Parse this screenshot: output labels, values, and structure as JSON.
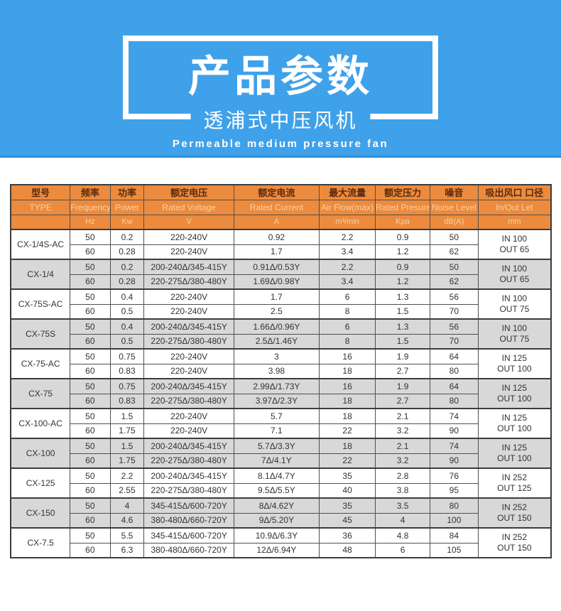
{
  "banner": {
    "title": "产品参数",
    "subtitle": "透浦式中压风机",
    "subtitle_en": "Permeable medium pressure fan",
    "bg_color": "#3fa1e9"
  },
  "table": {
    "colors": {
      "header_bg": "#ec8b3e",
      "header_text_cn": "#5b2a0e",
      "header_text_en": "#f8d2a4",
      "shaded_row": "#d8d8d8",
      "border": "#4f4f4f"
    },
    "header": {
      "cn": [
        "型号",
        "频率",
        "功率",
        "额定电压",
        "额定电流",
        "最大流量",
        "额定压力",
        "噪音",
        "吸出风口 口径"
      ],
      "en": [
        "TYPE",
        "Frequency",
        "Power",
        "Rated Voltage",
        "Rated Current",
        "Air Flow(max)",
        "Rated Presure",
        "Noise Level",
        "In/Out Let"
      ],
      "units": [
        "",
        "Hz",
        "Kw",
        "V",
        "A",
        "m³/min",
        "Kpa",
        "dB(A)",
        "mm"
      ]
    },
    "groups": [
      {
        "type": "CX-1/4S-AC",
        "shaded": false,
        "inout": [
          "IN 100",
          "OUT 65"
        ],
        "rows": [
          {
            "hz": "50",
            "kw": "0.2",
            "voltage": "220-240V",
            "current": "0.92",
            "flow": "2.2",
            "pressure": "0.9",
            "noise": "50"
          },
          {
            "hz": "60",
            "kw": "0.28",
            "voltage": "220-240V",
            "current": "1.7",
            "flow": "3.4",
            "pressure": "1.2",
            "noise": "62"
          }
        ]
      },
      {
        "type": "CX-1/4",
        "shaded": true,
        "inout": [
          "IN 100",
          "OUT 65"
        ],
        "rows": [
          {
            "hz": "50",
            "kw": "0.2",
            "voltage": "200-240Δ/345-415Y",
            "current": "0.91Δ/0.53Y",
            "flow": "2.2",
            "pressure": "0.9",
            "noise": "50"
          },
          {
            "hz": "60",
            "kw": "0.28",
            "voltage": "220-275Δ/380-480Y",
            "current": "1.69Δ/0.98Y",
            "flow": "3.4",
            "pressure": "1.2",
            "noise": "62"
          }
        ]
      },
      {
        "type": "CX-75S-AC",
        "shaded": false,
        "inout": [
          "IN 100",
          "OUT 75"
        ],
        "rows": [
          {
            "hz": "50",
            "kw": "0.4",
            "voltage": "220-240V",
            "current": "1.7",
            "flow": "6",
            "pressure": "1.3",
            "noise": "56"
          },
          {
            "hz": "60",
            "kw": "0.5",
            "voltage": "220-240V",
            "current": "2.5",
            "flow": "8",
            "pressure": "1.5",
            "noise": "70"
          }
        ]
      },
      {
        "type": "CX-75S",
        "shaded": true,
        "inout": [
          "IN 100",
          "OUT 75"
        ],
        "rows": [
          {
            "hz": "50",
            "kw": "0.4",
            "voltage": "200-240Δ/345-415Y",
            "current": "1.66Δ/0.96Y",
            "flow": "6",
            "pressure": "1.3",
            "noise": "56"
          },
          {
            "hz": "60",
            "kw": "0.5",
            "voltage": "220-275Δ/380-480Y",
            "current": "2.5Δ/1.46Y",
            "flow": "8",
            "pressure": "1.5",
            "noise": "70"
          }
        ]
      },
      {
        "type": "CX-75-AC",
        "shaded": false,
        "inout": [
          "IN 125",
          "OUT 100"
        ],
        "rows": [
          {
            "hz": "50",
            "kw": "0.75",
            "voltage": "220-240V",
            "current": "3",
            "flow": "16",
            "pressure": "1.9",
            "noise": "64"
          },
          {
            "hz": "60",
            "kw": "0.83",
            "voltage": "220-240V",
            "current": "3.98",
            "flow": "18",
            "pressure": "2.7",
            "noise": "80"
          }
        ]
      },
      {
        "type": "CX-75",
        "shaded": true,
        "inout": [
          "IN 125",
          "OUT 100"
        ],
        "rows": [
          {
            "hz": "50",
            "kw": "0.75",
            "voltage": "200-240Δ/345-415Y",
            "current": "2.99Δ/1.73Y",
            "flow": "16",
            "pressure": "1.9",
            "noise": "64"
          },
          {
            "hz": "60",
            "kw": "0.83",
            "voltage": "220-275Δ/380-480Y",
            "current": "3.97Δ/2.3Y",
            "flow": "18",
            "pressure": "2.7",
            "noise": "80"
          }
        ]
      },
      {
        "type": "CX-100-AC",
        "shaded": false,
        "inout": [
          "IN 125",
          "OUT 100"
        ],
        "rows": [
          {
            "hz": "50",
            "kw": "1.5",
            "voltage": "220-240V",
            "current": "5.7",
            "flow": "18",
            "pressure": "2.1",
            "noise": "74"
          },
          {
            "hz": "60",
            "kw": "1.75",
            "voltage": "220-240V",
            "current": "7.1",
            "flow": "22",
            "pressure": "3.2",
            "noise": "90"
          }
        ]
      },
      {
        "type": "CX-100",
        "shaded": true,
        "inout": [
          "IN 125",
          "OUT 100"
        ],
        "rows": [
          {
            "hz": "50",
            "kw": "1.5",
            "voltage": "200-240Δ/345-415Y",
            "current": "5.7Δ/3.3Y",
            "flow": "18",
            "pressure": "2.1",
            "noise": "74"
          },
          {
            "hz": "60",
            "kw": "1.75",
            "voltage": "220-275Δ/380-480Y",
            "current": "7Δ/4.1Y",
            "flow": "22",
            "pressure": "3.2",
            "noise": "90"
          }
        ]
      },
      {
        "type": "CX-125",
        "shaded": false,
        "inout": [
          "IN 252",
          "OUT 125"
        ],
        "rows": [
          {
            "hz": "50",
            "kw": "2.2",
            "voltage": "200-240Δ/345-415Y",
            "current": "8.1Δ/4.7Y",
            "flow": "35",
            "pressure": "2.8",
            "noise": "76"
          },
          {
            "hz": "60",
            "kw": "2.55",
            "voltage": "220-275Δ/380-480Y",
            "current": "9.5Δ/5.5Y",
            "flow": "40",
            "pressure": "3.8",
            "noise": "95"
          }
        ]
      },
      {
        "type": "CX-150",
        "shaded": true,
        "inout": [
          "IN 252",
          "OUT 150"
        ],
        "rows": [
          {
            "hz": "50",
            "kw": "4",
            "voltage": "345-415Δ/600-720Y",
            "current": "8Δ/4.62Y",
            "flow": "35",
            "pressure": "3.5",
            "noise": "80"
          },
          {
            "hz": "60",
            "kw": "4.6",
            "voltage": "380-480Δ/660-720Y",
            "current": "9Δ/5.20Y",
            "flow": "45",
            "pressure": "4",
            "noise": "100"
          }
        ]
      },
      {
        "type": "CX-7.5",
        "shaded": false,
        "inout": [
          "IN 252",
          "OUT 150"
        ],
        "rows": [
          {
            "hz": "50",
            "kw": "5.5",
            "voltage": "345-415Δ/600-720Y",
            "current": "10.9Δ/6.3Y",
            "flow": "36",
            "pressure": "4.8",
            "noise": "84"
          },
          {
            "hz": "60",
            "kw": "6.3",
            "voltage": "380-480Δ/660-720Y",
            "current": "12Δ/6.94Y",
            "flow": "48",
            "pressure": "6",
            "noise": "105"
          }
        ]
      }
    ]
  }
}
